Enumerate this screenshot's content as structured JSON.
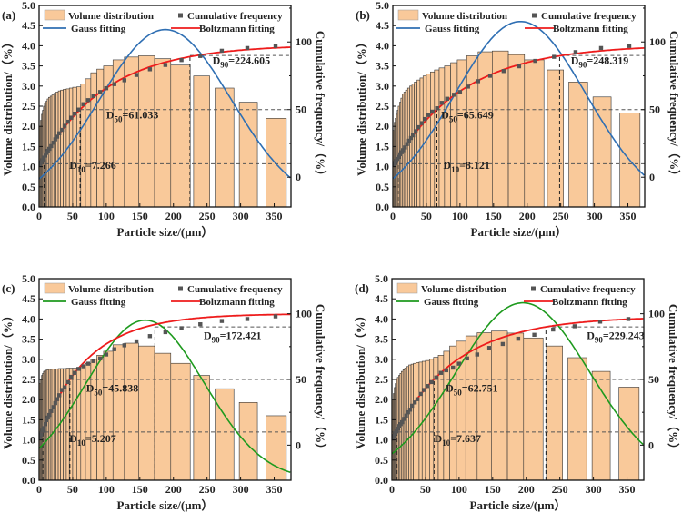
{
  "chart_data": {
    "type": "bar",
    "bin_edges": [
      0.5,
      2,
      3.5,
      5,
      6.5,
      8,
      10,
      12,
      14,
      16.5,
      19,
      22,
      25,
      28.5,
      32,
      36,
      40.5,
      45,
      50,
      56,
      62,
      69,
      77,
      86,
      96,
      110,
      127,
      148,
      172,
      196,
      225
    ],
    "extra_bins": [
      [
        230,
        254
      ],
      [
        262,
        290
      ],
      [
        298,
        325
      ],
      [
        338,
        368
      ]
    ],
    "colors": {
      "bar": "#f9c99a",
      "bar_edge": "#333333",
      "boltzmann": "#ee1c1c",
      "square": "#555555",
      "gauss_blue": "#2f6fb3",
      "gauss_green": "#1e9a1e"
    },
    "panels": [
      {
        "label": "(a)",
        "xlabel": "Particle size/(μm）",
        "ylabel": "Volume distribution/（%）",
        "y2label": "Cumulative frequency/（%）",
        "xlim": [
          0,
          375
        ],
        "ylim": [
          0,
          5
        ],
        "y2lim": [
          -22,
          127
        ],
        "xticks": [
          "0",
          "50",
          "100",
          "150",
          "200",
          "250",
          "300",
          "350"
        ],
        "yticks": [
          "0.0",
          "0.5",
          "1.0",
          "1.5",
          "2.0",
          "2.5",
          "3.0",
          "3.5",
          "4.0",
          "4.5",
          "5.0"
        ],
        "y2ticks": [
          "0",
          "50",
          "100"
        ],
        "legend": [
          "Volume distribution",
          "Cumulative frequency",
          "Gauss fitting",
          "Boltzmann fitting"
        ],
        "gauss_color": "#2f6fb3",
        "volume": [
          2.0,
          2.15,
          2.3,
          2.4,
          2.5,
          2.56,
          2.62,
          2.68,
          2.72,
          2.75,
          2.78,
          2.82,
          2.85,
          2.88,
          2.9,
          2.92,
          2.93,
          2.95,
          2.97,
          2.98,
          3.05,
          3.18,
          3.33,
          3.42,
          3.5,
          3.65,
          3.72,
          3.75,
          3.68,
          3.52,
          3.25,
          2.95,
          2.6,
          2.2
        ],
        "cumulative": {
          "x": [
            1,
            3,
            5,
            7,
            9,
            11,
            13,
            15,
            18,
            21,
            24,
            27,
            30,
            34,
            38,
            43,
            48,
            53,
            59,
            66,
            73,
            81,
            91,
            100,
            112,
            127,
            145,
            165,
            188,
            212,
            240,
            272,
            310,
            352
          ],
          "y": [
            9,
            11,
            12.5,
            14.5,
            16,
            18,
            19.5,
            21,
            23,
            25.5,
            28,
            30,
            32.5,
            35,
            38,
            41,
            44,
            47,
            50,
            54,
            57,
            60,
            63,
            65.8,
            68.8,
            71.7,
            75.6,
            79.8,
            83,
            86.6,
            89.6,
            93.5,
            95.5,
            97
          ]
        },
        "gauss": {
          "xc": 188,
          "A": 4.4,
          "w": 98,
          "y0": 0
        },
        "boltzmann": {
          "c0": 8,
          "cmax": 98,
          "t": 97
        },
        "d10": {
          "sub": "10",
          "value": "7.266",
          "x": 7.266
        },
        "d50": {
          "sub": "50",
          "value": "61.033",
          "x": 61.033
        },
        "d90": {
          "sub": "90",
          "value": "224.605",
          "x": 224.605
        }
      },
      {
        "label": "(b)",
        "xlabel": "Particle size/(μm）",
        "ylabel": "Volume distribution/（%）",
        "y2label": "Cumulative frequency/（%）",
        "xlim": [
          0,
          375
        ],
        "ylim": [
          0,
          5
        ],
        "y2lim": [
          -22,
          127
        ],
        "xticks": [
          "0",
          "50",
          "100",
          "150",
          "200",
          "250",
          "300",
          "350"
        ],
        "yticks": [
          "0.0",
          "0.5",
          "1.0",
          "1.5",
          "2.0",
          "2.5",
          "3.0",
          "3.5",
          "4.0",
          "4.5",
          "5.0"
        ],
        "y2ticks": [
          "0",
          "50",
          "100"
        ],
        "legend": [
          "Volume distribution",
          "Cumulative frequency",
          "Gauss fitting",
          "Boltzmann fitting"
        ],
        "gauss_color": "#2f6fb3",
        "volume": [
          1.9,
          2.1,
          2.2,
          2.3,
          2.4,
          2.5,
          2.6,
          2.7,
          2.8,
          2.85,
          2.9,
          2.95,
          3.0,
          3.05,
          3.1,
          3.15,
          3.2,
          3.25,
          3.3,
          3.35,
          3.4,
          3.45,
          3.5,
          3.58,
          3.65,
          3.75,
          3.85,
          3.87,
          3.78,
          3.65,
          3.4,
          3.1,
          2.73,
          2.33
        ],
        "cumulative": {
          "x": [
            1,
            3,
            5,
            7,
            9,
            11,
            13,
            15,
            18,
            21,
            24,
            27,
            30,
            34,
            38,
            43,
            48,
            53,
            59,
            66,
            73,
            81,
            91,
            100,
            112,
            127,
            145,
            165,
            188,
            212,
            240,
            272,
            310,
            352
          ],
          "y": [
            9,
            10.5,
            12,
            13.5,
            15,
            17,
            18.5,
            20,
            22,
            24.5,
            27,
            29,
            31,
            34,
            37,
            40,
            43,
            46,
            48.5,
            51,
            55,
            58,
            61,
            63,
            67,
            71,
            75,
            78.5,
            82,
            86,
            89,
            92.5,
            95.5,
            97
          ]
        },
        "gauss": {
          "xc": 190,
          "A": 4.6,
          "w": 98,
          "y0": 0
        },
        "boltzmann": {
          "c0": 8,
          "cmax": 98,
          "t": 104
        },
        "d10": {
          "sub": "10",
          "value": "8.121",
          "x": 8.121
        },
        "d50": {
          "sub": "50",
          "value": "65.649",
          "x": 65.649
        },
        "d90": {
          "sub": "90",
          "value": "248.319",
          "x": 248.319
        }
      },
      {
        "label": "(c)",
        "xlabel": "Particle size/(μm）",
        "ylabel": "Volume distribution/（%）",
        "y2label": "Cumulative frequency/（%）",
        "xlim": [
          0,
          375
        ],
        "ylim": [
          0,
          5
        ],
        "y2lim": [
          -26.7,
          126.7
        ],
        "xticks": [
          "0",
          "50",
          "100",
          "150",
          "200",
          "250",
          "300",
          "350"
        ],
        "yticks": [
          "0.0",
          "0.5",
          "1.0",
          "1.5",
          "2.0",
          "2.5",
          "3.0",
          "3.5",
          "4.0",
          "4.5",
          "5.0"
        ],
        "y2ticks": [
          "0",
          "50",
          "100"
        ],
        "legend": [
          "Volume distribution",
          "Cumulative frequency",
          "Gauss fitting",
          "Boltzmann fitting"
        ],
        "gauss_color": "#1e9a1e",
        "volume": [
          2.4,
          2.5,
          2.6,
          2.65,
          2.7,
          2.72,
          2.73,
          2.74,
          2.75,
          2.75,
          2.76,
          2.76,
          2.76,
          2.77,
          2.77,
          2.77,
          2.78,
          2.78,
          2.78,
          2.8,
          2.82,
          2.9,
          3.0,
          3.1,
          3.2,
          3.36,
          3.4,
          3.33,
          3.15,
          2.9,
          2.6,
          2.27,
          1.93,
          1.6
        ],
        "cumulative": {
          "x": [
            1,
            3,
            5,
            7,
            9,
            11,
            13,
            15,
            18,
            21,
            24,
            27,
            30,
            34,
            38,
            43,
            48,
            53,
            59,
            66,
            73,
            81,
            91,
            100,
            112,
            127,
            145,
            165,
            188,
            212,
            240,
            272,
            310,
            352
          ],
          "y": [
            5.5,
            8,
            11,
            13,
            16,
            19,
            21,
            23,
            26,
            29,
            32,
            35,
            38,
            42,
            44,
            48,
            52,
            55,
            58,
            60,
            62,
            64,
            66,
            69,
            73,
            76,
            79,
            83,
            86,
            89,
            92,
            94.5,
            96,
            98
          ]
        },
        "gauss": {
          "xc": 158,
          "A": 3.97,
          "w": 88,
          "y0": 0
        },
        "boltzmann": {
          "c0": 4,
          "cmax": 100,
          "t": 70
        },
        "d10": {
          "sub": "10",
          "value": "5.207",
          "x": 5.207
        },
        "d50": {
          "sub": "50",
          "value": "45.838",
          "x": 45.838
        },
        "d90": {
          "sub": "90",
          "value": "172.421",
          "x": 172.421
        }
      },
      {
        "label": "(d)",
        "xlabel": "Particle size/(μm）",
        "ylabel": "Volume distribution/（%）",
        "y2label": "Cumulative frequency/（%）",
        "xlim": [
          0,
          375
        ],
        "ylim": [
          0,
          5
        ],
        "y2lim": [
          -26.7,
          126.7
        ],
        "xticks": [
          "0",
          "50",
          "100",
          "150",
          "200",
          "250",
          "300",
          "350"
        ],
        "yticks": [
          "0.0",
          "0.5",
          "1.0",
          "1.5",
          "2.0",
          "2.5",
          "3.0",
          "3.5",
          "4.0",
          "4.5",
          "5.0"
        ],
        "y2ticks": [
          "0",
          "50",
          "100"
        ],
        "legend": [
          "Volume distribution",
          "Cumulative frequency",
          "Gauss fitting",
          "Boltzmann fitting"
        ],
        "gauss_color": "#1e9a1e",
        "volume": [
          2.0,
          2.15,
          2.3,
          2.4,
          2.5,
          2.55,
          2.6,
          2.65,
          2.7,
          2.74,
          2.78,
          2.82,
          2.86,
          2.88,
          2.9,
          2.92,
          2.93,
          2.95,
          2.97,
          3.0,
          3.05,
          3.1,
          3.2,
          3.33,
          3.45,
          3.58,
          3.66,
          3.7,
          3.65,
          3.53,
          3.33,
          3.04,
          2.7,
          2.31
        ],
        "cumulative": {
          "x": [
            1,
            3,
            5,
            7,
            9,
            11,
            13,
            15,
            18,
            21,
            24,
            27,
            30,
            34,
            38,
            43,
            48,
            53,
            59,
            66,
            73,
            81,
            91,
            100,
            112,
            127,
            145,
            165,
            188,
            212,
            240,
            272,
            310,
            352
          ],
          "y": [
            5,
            7,
            9,
            10.5,
            12.5,
            14.5,
            16,
            17.5,
            20,
            22.5,
            25,
            27,
            30,
            32.5,
            35,
            39,
            42,
            45,
            48,
            51.5,
            55,
            57,
            59,
            62,
            66,
            69,
            74,
            77,
            81,
            84,
            88,
            90.5,
            94,
            96
          ]
        },
        "gauss": {
          "xc": 195,
          "A": 4.4,
          "w": 100,
          "y0": 0
        },
        "boltzmann": {
          "c0": 4,
          "cmax": 98,
          "t": 93
        },
        "d10": {
          "sub": "10",
          "value": "7.637",
          "x": 7.637
        },
        "d50": {
          "sub": "50",
          "value": "62.751",
          "x": 62.751
        },
        "d90": {
          "sub": "90",
          "value": "229.243",
          "x": 229.243
        }
      }
    ]
  }
}
